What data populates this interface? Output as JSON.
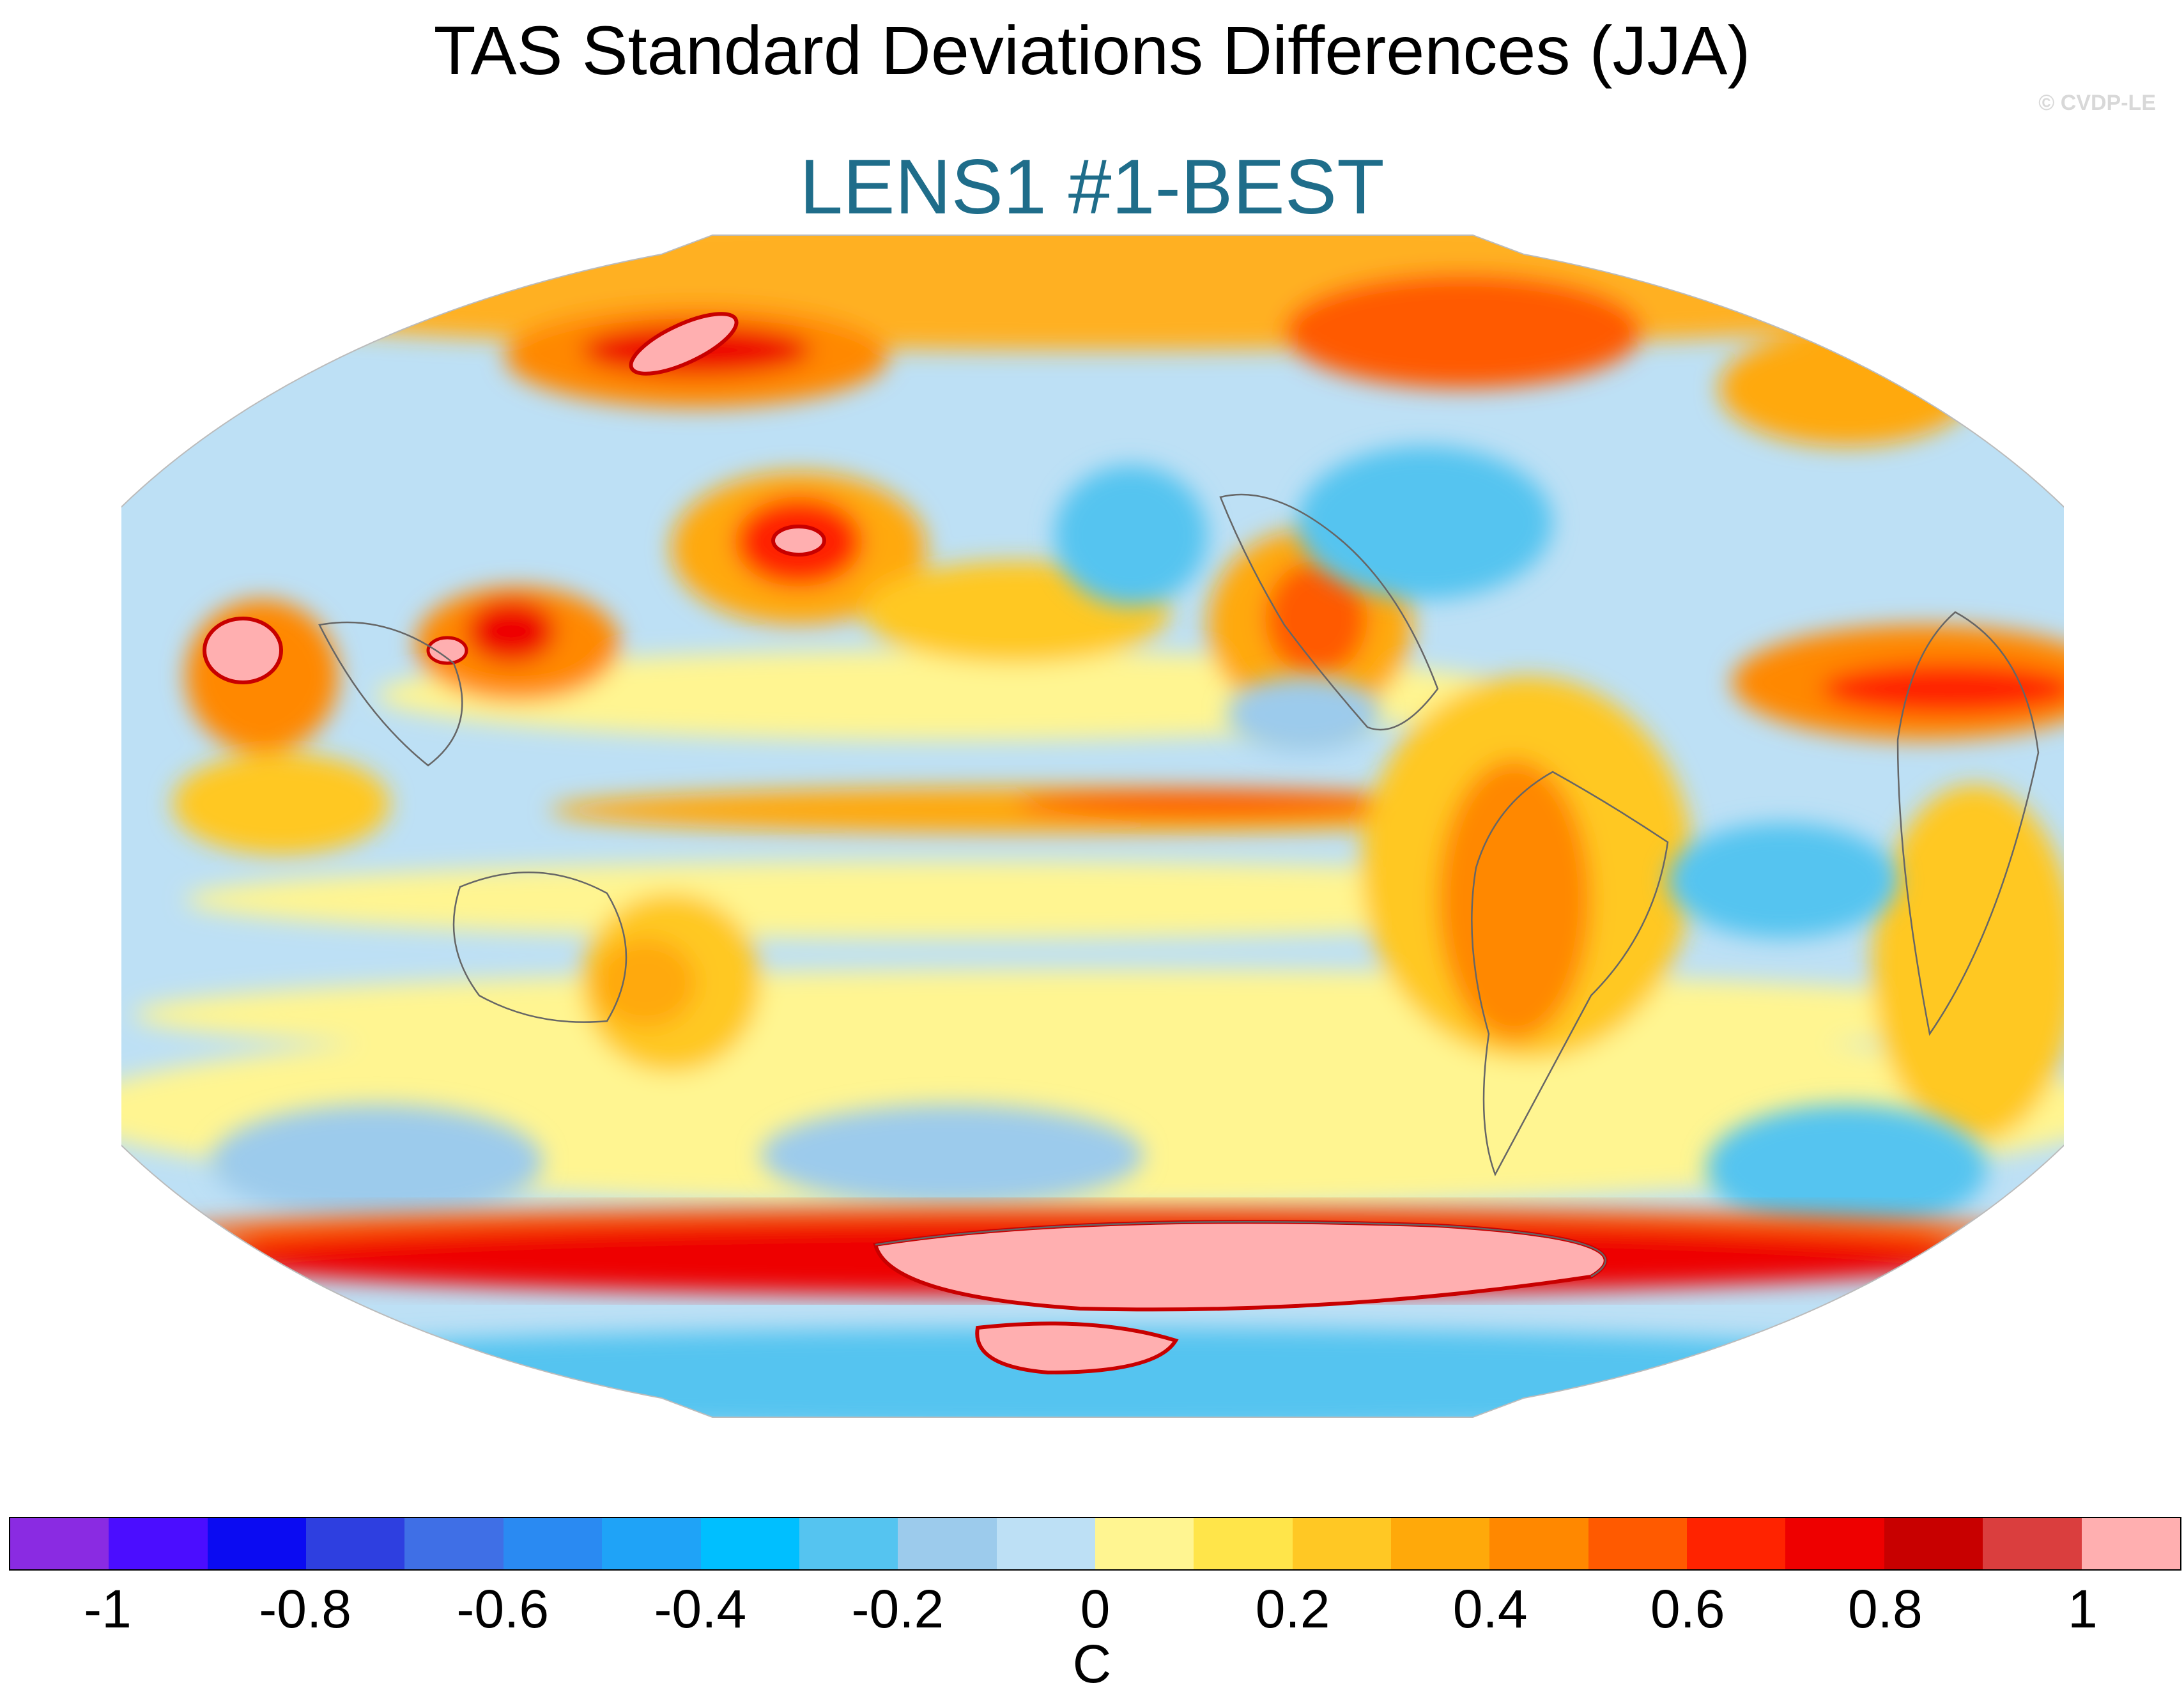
{
  "header": {
    "title": "TAS Standard Deviations Differences (JJA)",
    "subtitle": "LENS1 #1-BEST",
    "credit": "© CVDP-LE"
  },
  "colors": {
    "subtitle": "#1f6d8a",
    "credit": "#d8d8d8"
  },
  "colorbar": {
    "unit": "C",
    "ticks": [
      "-1",
      "-0.8",
      "-0.6",
      "-0.4",
      "-0.2",
      "0",
      "0.2",
      "0.4",
      "0.6",
      "0.8",
      "1"
    ],
    "swatches": [
      "#8a2be2",
      "#4b0dff",
      "#0b0bf2",
      "#2e3fe0",
      "#3f6fe6",
      "#2a8af2",
      "#1fa3f7",
      "#00bfff",
      "#55c4f0",
      "#9ccbec",
      "#bde0f5",
      "#fff591",
      "#ffe54a",
      "#ffc824",
      "#ffa90a",
      "#ff8800",
      "#ff5a00",
      "#ff2300",
      "#ee0000",
      "#c80000",
      "#da3e3e",
      "#ffafb0"
    ]
  }
}
